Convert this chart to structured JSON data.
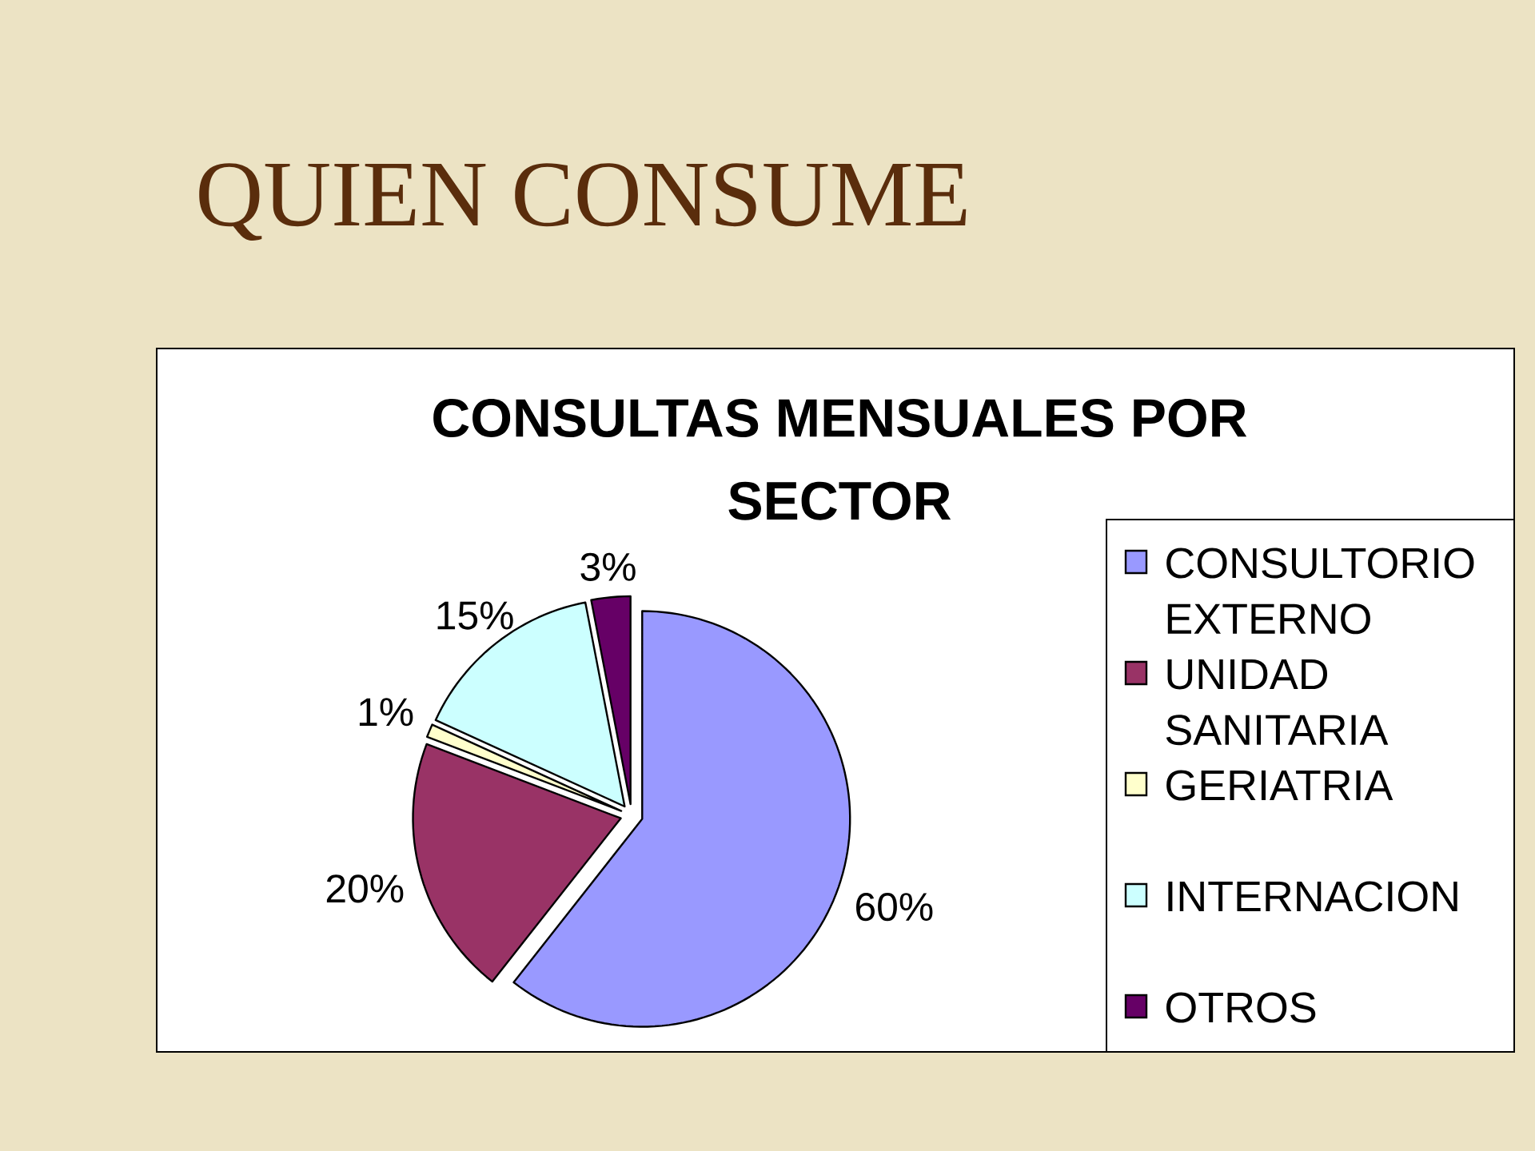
{
  "chart_data": {
    "type": "pie",
    "title": "QUIEN CONSUME",
    "subtitle": "CONSULTAS MENSUALES POR SECTOR",
    "categories": [
      "CONSULTORIO EXTERNO",
      "UNIDAD SANITARIA",
      "GERIATRIA",
      "INTERNACION",
      "OTROS"
    ],
    "values": [
      60,
      20,
      1,
      15,
      3
    ],
    "colors": [
      "#9999ff",
      "#993366",
      "#ffffcc",
      "#ccffff",
      "#660066"
    ],
    "value_labels": [
      "60%",
      "20%",
      "1%",
      "15%",
      "3%"
    ],
    "legend": "right"
  }
}
